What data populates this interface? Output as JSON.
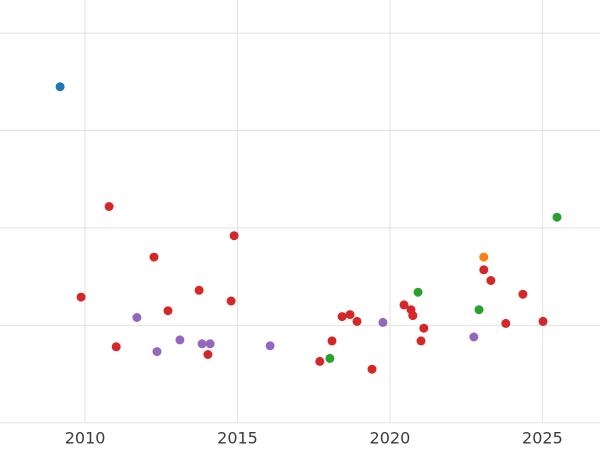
{
  "chart_data": {
    "type": "scatter",
    "title": "",
    "xlabel": "",
    "ylabel": "",
    "grid": true,
    "grid_color": "#e2e2e2",
    "background": "#ffffff",
    "tick_label_color": "#3b3b3b",
    "tick_font_size": 16,
    "point_radius": 4.5,
    "xlim": [
      2007.21,
      2026.89
    ],
    "ylim": [
      -0.28,
      4.34
    ],
    "x_ticks": [
      {
        "value": 2010,
        "label": "2010"
      },
      {
        "value": 2015,
        "label": "2015"
      },
      {
        "value": 2020,
        "label": "2020"
      },
      {
        "value": 2025,
        "label": "2025"
      }
    ],
    "y_grid_values": [
      0,
      1,
      2,
      3,
      4
    ],
    "legend": "none",
    "series": [
      {
        "name": "blue",
        "color": "#1f77b4",
        "points": [
          [
            2009.18,
            3.45
          ]
        ]
      },
      {
        "name": "red",
        "color": "#d62728",
        "points": [
          [
            2009.87,
            1.29
          ],
          [
            2010.79,
            2.22
          ],
          [
            2011.02,
            0.78
          ],
          [
            2012.26,
            1.7
          ],
          [
            2012.72,
            1.15
          ],
          [
            2013.74,
            1.36
          ],
          [
            2014.03,
            0.7
          ],
          [
            2014.79,
            1.25
          ],
          [
            2014.89,
            1.92
          ],
          [
            2017.7,
            0.63
          ],
          [
            2018.1,
            0.84
          ],
          [
            2018.43,
            1.09
          ],
          [
            2018.69,
            1.11
          ],
          [
            2018.92,
            1.04
          ],
          [
            2019.41,
            0.55
          ],
          [
            2020.46,
            1.21
          ],
          [
            2020.69,
            1.16
          ],
          [
            2020.75,
            1.1
          ],
          [
            2021.02,
            0.84
          ],
          [
            2021.11,
            0.97
          ],
          [
            2023.08,
            1.57
          ],
          [
            2023.31,
            1.46
          ],
          [
            2023.8,
            1.02
          ],
          [
            2024.36,
            1.32
          ],
          [
            2025.02,
            1.04
          ]
        ]
      },
      {
        "name": "purple",
        "color": "#9467bd",
        "points": [
          [
            2011.7,
            1.08
          ],
          [
            2012.36,
            0.73
          ],
          [
            2013.11,
            0.85
          ],
          [
            2013.84,
            0.81
          ],
          [
            2014.1,
            0.81
          ],
          [
            2016.07,
            0.79
          ],
          [
            2019.77,
            1.03
          ],
          [
            2022.75,
            0.88
          ]
        ]
      },
      {
        "name": "green",
        "color": "#2ca02c",
        "points": [
          [
            2018.03,
            0.66
          ],
          [
            2020.92,
            1.34
          ],
          [
            2022.92,
            1.16
          ],
          [
            2025.48,
            2.11
          ]
        ]
      },
      {
        "name": "orange",
        "color": "#ff7f0e",
        "points": [
          [
            2023.08,
            1.7
          ]
        ]
      }
    ]
  }
}
